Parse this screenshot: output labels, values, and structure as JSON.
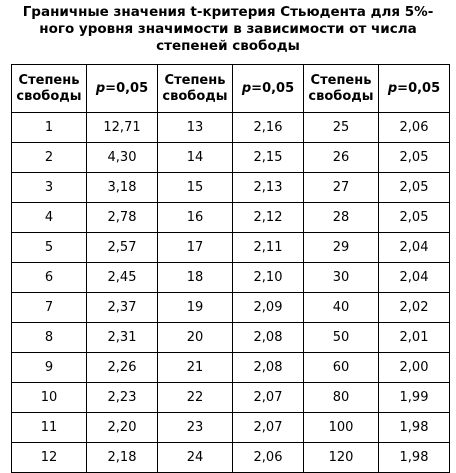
{
  "title": {
    "line1": "Граничные значения t-критерия Стьюдента для 5%-",
    "line2": "ного уровня значимости в зависимости от числа",
    "line3": "степеней свободы"
  },
  "table": {
    "headers": {
      "df_line1": "Степень",
      "df_line2": "свободы",
      "p_symbol": "p",
      "p_value": "=0,05"
    },
    "rows": [
      [
        "1",
        "12,71",
        "13",
        "2,16",
        "25",
        "2,06"
      ],
      [
        "2",
        "4,30",
        "14",
        "2,15",
        "26",
        "2,05"
      ],
      [
        "3",
        "3,18",
        "15",
        "2,13",
        "27",
        "2,05"
      ],
      [
        "4",
        "2,78",
        "16",
        "2,12",
        "28",
        "2,05"
      ],
      [
        "5",
        "2,57",
        "17",
        "2,11",
        "29",
        "2,04"
      ],
      [
        "6",
        "2,45",
        "18",
        "2,10",
        "30",
        "2,04"
      ],
      [
        "7",
        "2,37",
        "19",
        "2,09",
        "40",
        "2,02"
      ],
      [
        "8",
        "2,31",
        "20",
        "2,08",
        "50",
        "2,01"
      ],
      [
        "9",
        "2,26",
        "21",
        "2,08",
        "60",
        "2,00"
      ],
      [
        "10",
        "2,23",
        "22",
        "2,07",
        "80",
        "1,99"
      ],
      [
        "11",
        "2,20",
        "23",
        "2,07",
        "100",
        "1,98"
      ],
      [
        "12",
        "2,18",
        "24",
        "2,06",
        "120",
        "1,98"
      ]
    ]
  }
}
